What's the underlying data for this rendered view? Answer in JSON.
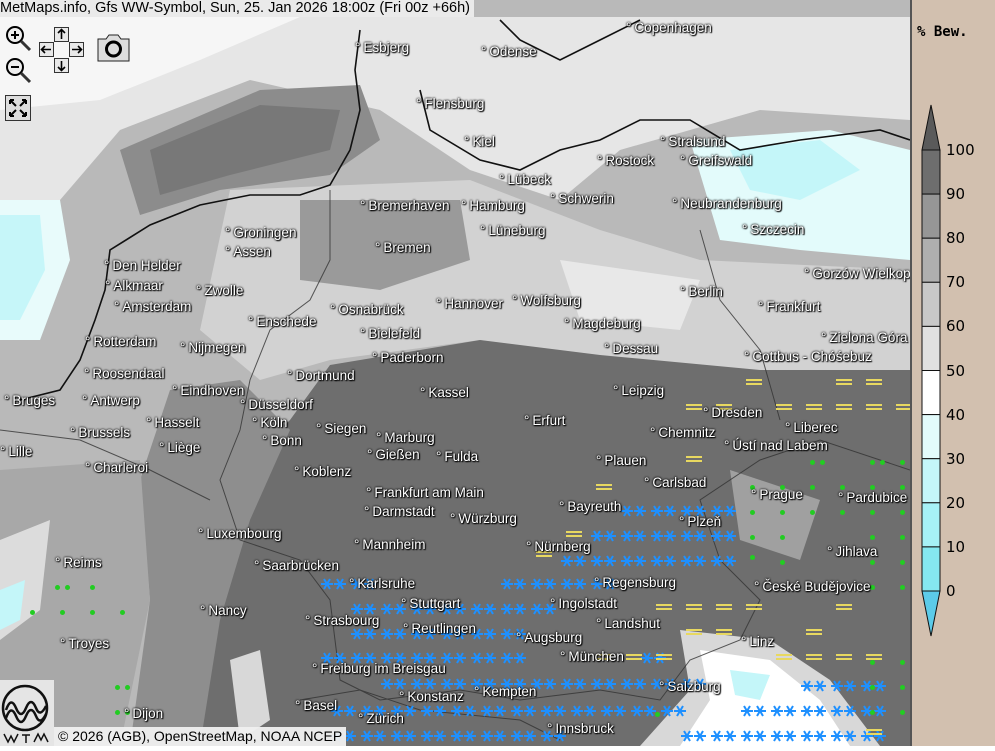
{
  "title": "MetMaps.info, Gfs WW-Symbol, Sun, 25. Jan 2026 18:00z (Fri 00z +66h)",
  "controls": [
    "zoom-in",
    "zoom-out",
    "pan",
    "snapshot",
    "fullscreen"
  ],
  "legend": {
    "title": "% Bew.",
    "ticks": [
      "100",
      "90",
      "80",
      "70",
      "60",
      "50",
      "40",
      "30",
      "20",
      "10",
      "0"
    ],
    "colors": [
      "#6e6e6e",
      "#969696",
      "#afafaf",
      "#c8c8c8",
      "#e1e1e1",
      "#ffffff",
      "#e3fbfb",
      "#c4f6f9",
      "#a6f1f6",
      "#85e8f0"
    ],
    "over_color": "#5a5a5a",
    "under_color": "#5ccbe9"
  },
  "symbols": {
    "snow_color": "#1e90ff",
    "rain_color": "#22cc22",
    "fog_color": "#e8d860"
  },
  "cities": [
    "Esbjerg",
    "Odense",
    "Copenhagen",
    "Flensburg",
    "Kiel",
    "Stralsund",
    "Rostock",
    "Greifswald",
    "Lübeck",
    "Schwerin",
    "Bremerhaven",
    "Hamburg",
    "Neubrandenburg",
    "Szczecin",
    "Groningen",
    "Lüneburg",
    "Assen",
    "Bremen",
    "Den Helder",
    "Gorzów Wielkopolski",
    "Alkmaar",
    "Berlin",
    "Zwolle",
    "Amsterdam",
    "Hannover",
    "Wolfsburg",
    "Frankfurt",
    "Enschede",
    "Osnabrück",
    "Magdeburg",
    "Bielefeld",
    "Zielona Góra",
    "Rotterdam",
    "Nijmegen",
    "Dessau",
    "Paderborn",
    "Cottbus - Chóśebuz",
    "Roosendaal",
    "Eindhoven",
    "Dortmund",
    "Kassel",
    "Leipzig",
    "Bruges",
    "Antwerp",
    "Düsseldorf",
    "Dresden",
    "Hasselt",
    "Köln",
    "Erfurt",
    "Siegen",
    "Marburg",
    "Brussels",
    "Chemnitz",
    "Liberec",
    "Ústí nad Labem",
    "Lille",
    "Liège",
    "Bonn",
    "Gießen",
    "Fulda",
    "Plauen",
    "Charleroi",
    "Koblenz",
    "Carlsbad",
    "Prague",
    "Pardubice",
    "Frankfurt am Main",
    "Bayreuth",
    "Darmstadt",
    "Würzburg",
    "Plzeň",
    "Luxembourg",
    "Mannheim",
    "Nürnberg",
    "Jihlava",
    "Reims",
    "Saarbrücken",
    "Karlsruhe",
    "Regensburg",
    "České Budějovice",
    "Stuttgart",
    "Ingolstadt",
    "Nancy",
    "Strasbourg",
    "Landshut",
    "Reutlingen",
    "Augsburg",
    "Troyes",
    "Linz",
    "Freiburg im Breisgau",
    "München",
    "Salzburg",
    "Kempten",
    "Konstanz",
    "Basel",
    "Zürich",
    "Innsbruck",
    "Dijon"
  ],
  "attribution": "© 2026 (AGB), OpenStreetMap, NOAA NCEP",
  "logo_text": "METMAPS"
}
